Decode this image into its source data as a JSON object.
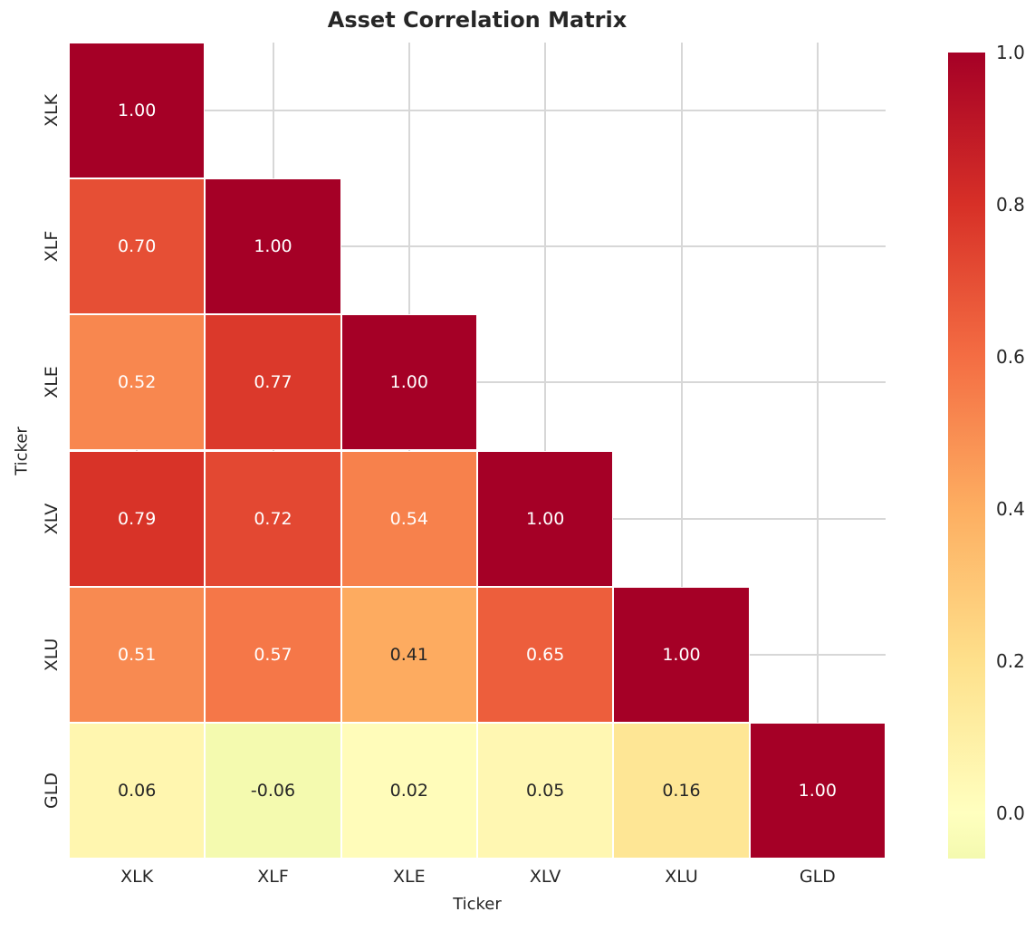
{
  "title": "Asset Correlation Matrix",
  "axes": {
    "x_label": "Ticker",
    "y_label": "Ticker",
    "x_ticks": [
      "XLK",
      "XLF",
      "XLE",
      "XLV",
      "XLU",
      "GLD"
    ],
    "y_ticks": [
      "XLK",
      "XLF",
      "XLE",
      "XLV",
      "XLU",
      "GLD"
    ]
  },
  "chart_data": {
    "type": "heatmap",
    "title": "Asset Correlation Matrix",
    "xlabel": "Ticker",
    "ylabel": "Ticker",
    "categories": [
      "XLK",
      "XLF",
      "XLE",
      "XLV",
      "XLU",
      "GLD"
    ],
    "matrix": [
      [
        1.0,
        null,
        null,
        null,
        null,
        null
      ],
      [
        0.7,
        1.0,
        null,
        null,
        null,
        null
      ],
      [
        0.52,
        0.77,
        1.0,
        null,
        null,
        null
      ],
      [
        0.79,
        0.72,
        0.54,
        1.0,
        null,
        null
      ],
      [
        0.51,
        0.57,
        0.41,
        0.65,
        1.0,
        null
      ],
      [
        0.06,
        -0.06,
        0.02,
        0.05,
        0.16,
        1.0
      ]
    ],
    "mask": "upper-triangle-hidden",
    "value_format": "2dp",
    "grid": true,
    "colormap": {
      "name": "RdYlGn_r",
      "stops": [
        "#006837",
        "#1A9850",
        "#66BD63",
        "#A6D96A",
        "#D9EF8B",
        "#FFFFBF",
        "#FEE08B",
        "#FDAE61",
        "#F46D43",
        "#D73027",
        "#A50026"
      ],
      "value_domain": [
        -1,
        1
      ]
    },
    "colorbar": {
      "tick_labels": [
        "1.0",
        "0.8",
        "0.6",
        "0.4",
        "0.2",
        "0.0"
      ],
      "tick_values": [
        1.0,
        0.8,
        0.6,
        0.4,
        0.2,
        0.0
      ],
      "range": [
        -0.06,
        1.0
      ],
      "legend_position": "right"
    }
  },
  "style": {
    "background": "#FFFFFF",
    "grid_color": "#D7D7D7",
    "text_dark": "#262626",
    "annot_light": "#FFFFFF",
    "cell_border": "#FFFFFF",
    "cmap_top": "#A50026",
    "cmap_bottom": "#F4FAAF"
  }
}
